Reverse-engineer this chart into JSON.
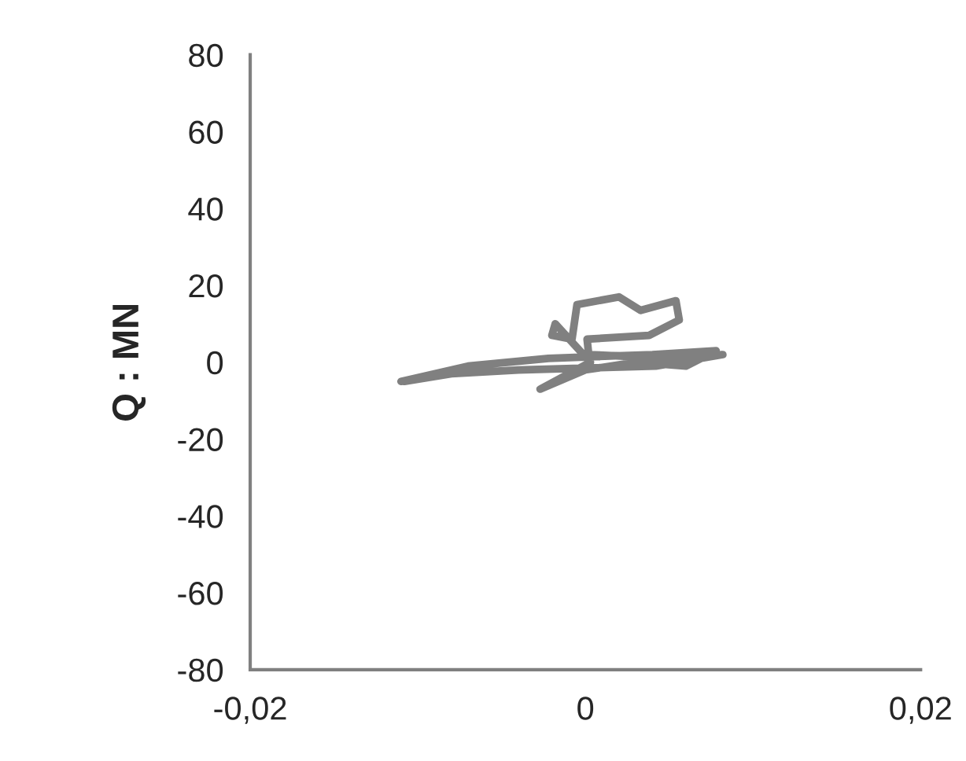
{
  "chart_data": {
    "type": "line",
    "ylabel": "Q : MN",
    "xlim": [
      -0.02,
      0.02
    ],
    "ylim": [
      -80,
      80
    ],
    "xticks": [
      {
        "value": -0.02,
        "label": "-0,02"
      },
      0,
      {
        "value": 0.02,
        "label": "0,02"
      }
    ],
    "yticks": [
      -80,
      -60,
      -40,
      -20,
      0,
      20,
      40,
      60,
      80
    ],
    "grid": false,
    "marker": "none",
    "line_style": "solid",
    "x": [
      -0.011,
      -0.007,
      -0.0022,
      0.004,
      0.0078,
      0.006,
      0.003,
      0.0,
      -0.0027,
      -0.001,
      0.0003,
      -0.0018,
      -0.002,
      -0.0008,
      -0.0005,
      0.002,
      0.0033,
      0.0054,
      0.0056,
      0.0038,
      0.0001,
      0.0002,
      0.005,
      0.0082,
      0.0042,
      -0.004,
      -0.008,
      -0.0108
    ],
    "series": [
      {
        "color": "#808080",
        "values": [
          -5,
          -1,
          1,
          2,
          3,
          -1,
          0,
          -2,
          -7,
          -3,
          0,
          10,
          7,
          6,
          15,
          17,
          13.5,
          16,
          11,
          7,
          6,
          2,
          1,
          2,
          -1,
          -2,
          -3,
          -5
        ]
      }
    ]
  }
}
